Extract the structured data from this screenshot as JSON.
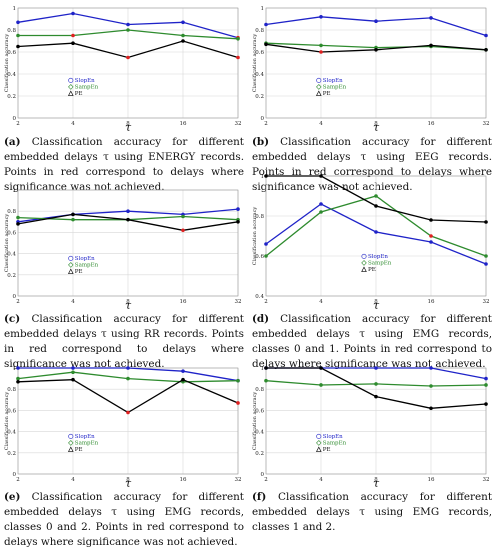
{
  "legend_entries": [
    "SlopEn",
    "SampEn",
    "PE"
  ],
  "colors": {
    "SlopEn": "#1f23c8",
    "SampEn": "#2e8b2e",
    "PE": "#000000",
    "insignificant": "#e02020"
  },
  "chart_data": [
    {
      "panel": "a",
      "type": "line",
      "x": [
        2,
        4,
        8,
        16,
        32
      ],
      "xscale": "log2",
      "xlabel": "τ",
      "ylabel": "Classification accuracy",
      "ylim": [
        0,
        1
      ],
      "yticks": [
        0,
        0.2,
        0.4,
        0.6,
        0.8,
        1
      ],
      "xticks": [
        2,
        4,
        8,
        16,
        32
      ],
      "legend_position": "lower-left",
      "grid": true,
      "series": [
        {
          "name": "SlopEn",
          "values": [
            0.87,
            0.95,
            0.85,
            0.87,
            0.73
          ],
          "insignificant": [
            4
          ]
        },
        {
          "name": "SampEn",
          "values": [
            0.75,
            0.75,
            0.8,
            0.75,
            0.72
          ],
          "insignificant": [
            1
          ]
        },
        {
          "name": "PE",
          "values": [
            0.65,
            0.68,
            0.55,
            0.7,
            0.55
          ],
          "insignificant": [
            2,
            4
          ]
        }
      ],
      "caption_label": "(a)",
      "caption": "Classification accuracy for different embedded delays τ using ENERGY records. Points in red correspond to delays where significance was not achieved."
    },
    {
      "panel": "b",
      "type": "line",
      "x": [
        2,
        4,
        8,
        16,
        32
      ],
      "xscale": "log2",
      "xlabel": "τ",
      "ylabel": "Classification accuracy",
      "ylim": [
        0,
        1
      ],
      "yticks": [
        0,
        0.2,
        0.4,
        0.6,
        0.8,
        1
      ],
      "xticks": [
        2,
        4,
        8,
        16,
        32
      ],
      "legend_position": "lower-left",
      "grid": true,
      "series": [
        {
          "name": "SlopEn",
          "values": [
            0.85,
            0.92,
            0.88,
            0.91,
            0.75
          ],
          "insignificant": []
        },
        {
          "name": "SampEn",
          "values": [
            0.68,
            0.66,
            0.64,
            0.65,
            0.62
          ],
          "insignificant": []
        },
        {
          "name": "PE",
          "values": [
            0.67,
            0.6,
            0.62,
            0.66,
            0.62
          ],
          "insignificant": [
            1
          ]
        }
      ],
      "caption_label": "(b)",
      "caption": "Classification accuracy for different embedded delays τ using EEG records. Points in red correspond to delays where significance was not achieved."
    },
    {
      "panel": "c",
      "type": "line",
      "x": [
        2,
        4,
        8,
        16,
        32
      ],
      "xscale": "log2",
      "xlabel": "τ",
      "ylabel": "Classification accuracy",
      "ylim": [
        0,
        1
      ],
      "yticks": [
        0,
        0.2,
        0.4,
        0.6,
        0.8,
        1
      ],
      "xticks": [
        2,
        4,
        8,
        16,
        32
      ],
      "legend_position": "lower-left",
      "grid": true,
      "series": [
        {
          "name": "SlopEn",
          "values": [
            0.7,
            0.77,
            0.8,
            0.77,
            0.82
          ],
          "insignificant": []
        },
        {
          "name": "SampEn",
          "values": [
            0.74,
            0.72,
            0.72,
            0.75,
            0.72
          ],
          "insignificant": []
        },
        {
          "name": "PE",
          "values": [
            0.68,
            0.77,
            0.72,
            0.62,
            0.7
          ],
          "insignificant": [
            3
          ]
        }
      ],
      "caption_label": "(c)",
      "caption": "Classification accuracy for different embedded delays τ using RR records. Points in red correspond to delays where significance was not achieved."
    },
    {
      "panel": "d",
      "type": "line",
      "x": [
        2,
        4,
        8,
        16,
        32
      ],
      "xscale": "log2",
      "xlabel": "τ",
      "ylabel": "Classification accuracy",
      "ylim": [
        0.4,
        1
      ],
      "yticks": [
        0.4,
        0.6,
        0.8,
        1
      ],
      "xticks": [
        2,
        4,
        8,
        16,
        32
      ],
      "legend_position": "lower-center",
      "grid": true,
      "series": [
        {
          "name": "SlopEn",
          "values": [
            0.66,
            0.86,
            0.72,
            0.67,
            0.56
          ],
          "insignificant": []
        },
        {
          "name": "SampEn",
          "values": [
            0.6,
            0.82,
            0.9,
            0.7,
            0.6
          ],
          "insignificant": [
            3
          ]
        },
        {
          "name": "PE",
          "values": [
            1.0,
            1.0,
            0.85,
            0.78,
            0.77
          ],
          "insignificant": []
        }
      ],
      "caption_label": "(d)",
      "caption": "Classification accuracy for different embedded delays τ using EMG records, classes 0 and 1. Points in red correspond to delays where significance was not achieved."
    },
    {
      "panel": "e",
      "type": "line",
      "x": [
        2,
        4,
        8,
        16,
        32
      ],
      "xscale": "log2",
      "xlabel": "τ",
      "ylabel": "Classification accuracy",
      "ylim": [
        0,
        1
      ],
      "yticks": [
        0,
        0.2,
        0.4,
        0.6,
        0.8,
        1
      ],
      "xticks": [
        2,
        4,
        8,
        16,
        32
      ],
      "legend_position": "lower-left",
      "grid": true,
      "series": [
        {
          "name": "SlopEn",
          "values": [
            1.0,
            1.0,
            1.0,
            0.97,
            0.88
          ],
          "insignificant": []
        },
        {
          "name": "SampEn",
          "values": [
            0.9,
            0.96,
            0.9,
            0.87,
            0.88
          ],
          "insignificant": []
        },
        {
          "name": "PE",
          "values": [
            0.87,
            0.89,
            0.58,
            0.89,
            0.67
          ],
          "insignificant": [
            2,
            4
          ]
        }
      ],
      "caption_label": "(e)",
      "caption": "Classification accuracy for different embedded delays τ using EMG records, classes 0 and 2. Points in red correspond to delays where significance was not achieved."
    },
    {
      "panel": "f",
      "type": "line",
      "x": [
        2,
        4,
        8,
        16,
        32
      ],
      "xscale": "log2",
      "xlabel": "τ",
      "ylabel": "Classification accuracy",
      "ylim": [
        0,
        1
      ],
      "yticks": [
        0,
        0.2,
        0.4,
        0.6,
        0.8,
        1
      ],
      "xticks": [
        2,
        4,
        8,
        16,
        32
      ],
      "legend_position": "lower-left",
      "grid": true,
      "series": [
        {
          "name": "SlopEn",
          "values": [
            1.0,
            1.0,
            1.0,
            1.0,
            0.9
          ],
          "insignificant": []
        },
        {
          "name": "SampEn",
          "values": [
            0.88,
            0.84,
            0.85,
            0.83,
            0.84
          ],
          "insignificant": []
        },
        {
          "name": "PE",
          "values": [
            1.0,
            1.0,
            0.73,
            0.62,
            0.66
          ],
          "insignificant": []
        }
      ],
      "caption_label": "(f)",
      "caption": "Classification accuracy for different embedded delays τ using EMG records, classes 1 and 2."
    }
  ]
}
